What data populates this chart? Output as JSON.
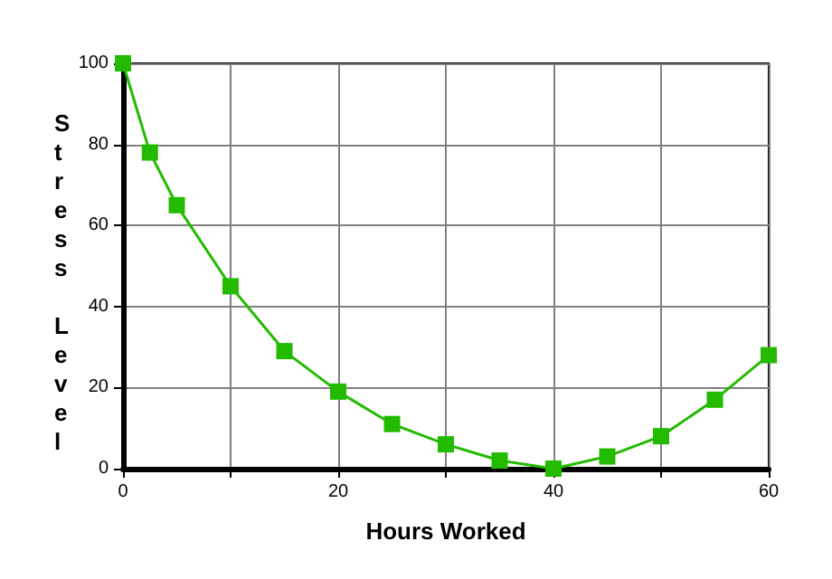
{
  "chart_data": {
    "type": "line",
    "xlabel": "Hours Worked",
    "ylabel": "Stress Level",
    "x": [
      0,
      2.5,
      5,
      10,
      15,
      20,
      25,
      30,
      35,
      40,
      45,
      50,
      55,
      60
    ],
    "series": [
      {
        "color": "#22bb00",
        "values": [
          100,
          78,
          65,
          45,
          29,
          19,
          11,
          6,
          2,
          0,
          3,
          8,
          17,
          28
        ]
      }
    ],
    "xlim": [
      0,
      60
    ],
    "xticks": [
      0,
      {
        "value": 10,
        "label": null
      },
      20,
      {
        "value": 30,
        "label": null
      },
      40,
      {
        "value": 50,
        "label": null
      },
      60
    ],
    "ylim": [
      0,
      100
    ],
    "yticks": [
      0,
      20,
      40,
      60,
      80,
      100
    ],
    "grid": true,
    "marker": "square",
    "line_style": "solid"
  }
}
